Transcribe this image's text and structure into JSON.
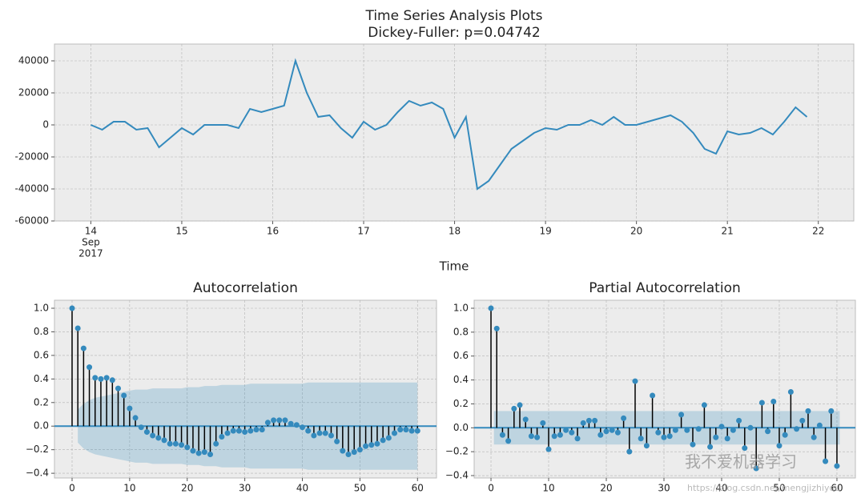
{
  "chart_data": [
    {
      "type": "line",
      "title": "Time Series Analysis Plots",
      "subtitle": "Dickey-Fuller: p=0.04742",
      "x_label": "Time",
      "x": [
        14,
        14.125,
        14.25,
        14.375,
        14.5,
        14.625,
        14.75,
        14.875,
        15,
        15.125,
        15.25,
        15.375,
        15.5,
        15.625,
        15.75,
        15.875,
        16,
        16.125,
        16.25,
        16.375,
        16.5,
        16.625,
        16.75,
        16.875,
        17,
        17.125,
        17.25,
        17.375,
        17.5,
        17.625,
        17.75,
        17.875,
        18,
        18.125,
        18.25,
        18.375,
        18.5,
        18.625,
        18.75,
        18.875,
        19,
        19.125,
        19.25,
        19.375,
        19.5,
        19.625,
        19.75,
        19.875,
        20,
        20.125,
        20.25,
        20.375,
        20.5,
        20.625,
        20.75,
        20.875,
        21,
        21.125,
        21.25,
        21.375,
        21.5,
        21.625,
        21.75,
        21.875
      ],
      "values": [
        0,
        -3000,
        2000,
        2000,
        -3000,
        -2000,
        -14000,
        -8000,
        -2000,
        -6000,
        0,
        0,
        0,
        -2000,
        10000,
        8000,
        10000,
        12000,
        40000,
        20000,
        5000,
        6000,
        -2000,
        -8000,
        2000,
        -3000,
        0,
        8000,
        15000,
        12000,
        14000,
        10000,
        -8000,
        5000,
        -40000,
        -35000,
        -25000,
        -15000,
        -10000,
        -5000,
        -2000,
        -3000,
        0,
        0,
        3000,
        0,
        5000,
        0,
        0,
        2000,
        4000,
        6000,
        2000,
        -5000,
        -15000,
        -18000,
        -4000,
        -6000,
        -5000,
        -2000,
        -6000,
        2000,
        11000,
        5000
      ],
      "color": "#348abd",
      "x_tick_sublabels": [
        "Sep",
        "2017"
      ],
      "xlim": [
        13.6,
        22.39
      ],
      "ylim": [
        -60000,
        50500
      ],
      "xticks": [
        14,
        15,
        16,
        17,
        18,
        19,
        20,
        21,
        22
      ],
      "yticks": [
        -60000,
        -40000,
        -20000,
        0,
        20000,
        40000
      ],
      "grid": true
    },
    {
      "type": "stem",
      "title": "Autocorrelation",
      "x": [
        0,
        1,
        2,
        3,
        4,
        5,
        6,
        7,
        8,
        9,
        10,
        11,
        12,
        13,
        14,
        15,
        16,
        17,
        18,
        19,
        20,
        21,
        22,
        23,
        24,
        25,
        26,
        27,
        28,
        29,
        30,
        31,
        32,
        33,
        34,
        35,
        36,
        37,
        38,
        39,
        40,
        41,
        42,
        43,
        44,
        45,
        46,
        47,
        48,
        49,
        50,
        51,
        52,
        53,
        54,
        55,
        56,
        57,
        58,
        59,
        60
      ],
      "values": [
        1.0,
        0.83,
        0.66,
        0.5,
        0.41,
        0.4,
        0.41,
        0.39,
        0.32,
        0.26,
        0.15,
        0.07,
        -0.01,
        -0.05,
        -0.08,
        -0.1,
        -0.12,
        -0.15,
        -0.15,
        -0.16,
        -0.18,
        -0.21,
        -0.23,
        -0.22,
        -0.24,
        -0.15,
        -0.09,
        -0.06,
        -0.04,
        -0.04,
        -0.05,
        -0.04,
        -0.03,
        -0.03,
        0.03,
        0.05,
        0.05,
        0.05,
        0.02,
        0.01,
        -0.01,
        -0.04,
        -0.08,
        -0.06,
        -0.06,
        -0.08,
        -0.13,
        -0.21,
        -0.24,
        -0.22,
        -0.2,
        -0.17,
        -0.16,
        -0.15,
        -0.12,
        -0.1,
        -0.06,
        -0.03,
        -0.03,
        -0.04,
        -0.04
      ],
      "conf_band": [
        null,
        0.14,
        0.19,
        0.22,
        0.24,
        0.25,
        0.26,
        0.27,
        0.28,
        0.29,
        0.3,
        0.31,
        0.31,
        0.31,
        0.32,
        0.32,
        0.32,
        0.32,
        0.32,
        0.32,
        0.33,
        0.33,
        0.33,
        0.34,
        0.34,
        0.34,
        0.35,
        0.35,
        0.35,
        0.35,
        0.35,
        0.36,
        0.36,
        0.36,
        0.36,
        0.36,
        0.36,
        0.36,
        0.36,
        0.36,
        0.36,
        0.37,
        0.37,
        0.37,
        0.37,
        0.37,
        0.37,
        0.37,
        0.37,
        0.37,
        0.37,
        0.37,
        0.37,
        0.37,
        0.37,
        0.37,
        0.37,
        0.37,
        0.37,
        0.37,
        0.37
      ],
      "color": "#348abd",
      "stem_color": "#000000",
      "xlim": [
        -3.06,
        63.3
      ],
      "ylim": [
        -0.44,
        1.068
      ],
      "xticks": [
        0,
        10,
        20,
        30,
        40,
        50,
        60
      ],
      "yticks": [
        {
          "value": -0.4,
          "label": "−0.4"
        },
        {
          "value": -0.2,
          "label": "−0.2"
        },
        {
          "value": 0,
          "label": "0.0"
        },
        {
          "value": 0.2,
          "label": "0.2"
        },
        {
          "value": 0.4,
          "label": "0.4"
        },
        {
          "value": 0.6,
          "label": "0.6"
        },
        {
          "value": 0.8,
          "label": "0.8"
        },
        {
          "value": 1,
          "label": "1.0"
        }
      ],
      "grid": true
    },
    {
      "type": "stem",
      "title": "Partial Autocorrelation",
      "x": [
        0,
        1,
        2,
        3,
        4,
        5,
        6,
        7,
        8,
        9,
        10,
        11,
        12,
        13,
        14,
        15,
        16,
        17,
        18,
        19,
        20,
        21,
        22,
        23,
        24,
        25,
        26,
        27,
        28,
        29,
        30,
        31,
        32,
        33,
        34,
        35,
        36,
        37,
        38,
        39,
        40,
        41,
        42,
        43,
        44,
        45,
        46,
        47,
        48,
        49,
        50,
        51,
        52,
        53,
        54,
        55,
        56,
        57,
        58,
        59,
        60
      ],
      "values": [
        1.0,
        0.83,
        -0.06,
        -0.11,
        0.16,
        0.19,
        0.07,
        -0.07,
        -0.08,
        0.04,
        -0.18,
        -0.07,
        -0.06,
        -0.02,
        -0.04,
        -0.09,
        0.04,
        0.06,
        0.06,
        -0.06,
        -0.03,
        -0.02,
        -0.04,
        0.08,
        -0.2,
        0.39,
        -0.09,
        -0.15,
        0.27,
        -0.04,
        -0.08,
        -0.07,
        -0.02,
        0.11,
        -0.02,
        -0.14,
        -0.01,
        0.19,
        -0.16,
        -0.08,
        0.01,
        -0.09,
        -0.02,
        0.06,
        -0.17,
        0.0,
        -0.34,
        0.21,
        -0.03,
        0.22,
        -0.15,
        -0.06,
        0.3,
        -0.01,
        0.06,
        0.14,
        -0.08,
        0.02,
        -0.28,
        0.14,
        -0.32
      ],
      "conf_band": 0.14,
      "color": "#348abd",
      "stem_color": "#000000",
      "xlim": [
        -2.92,
        63.2
      ],
      "ylim": [
        -0.42,
        1.067
      ],
      "xticks": [
        0,
        10,
        20,
        30,
        40,
        50,
        60
      ],
      "yticks": [
        {
          "value": -0.4,
          "label": "−0.4"
        },
        {
          "value": -0.2,
          "label": "−0.2"
        },
        {
          "value": 0,
          "label": "0.0"
        },
        {
          "value": 0.2,
          "label": "0.2"
        },
        {
          "value": 0.4,
          "label": "0.4"
        },
        {
          "value": 0.6,
          "label": "0.6"
        },
        {
          "value": 0.8,
          "label": "0.8"
        },
        {
          "value": 1,
          "label": "1.0"
        }
      ],
      "grid": true
    }
  ],
  "watermark": {
    "text": "我不爱机器学习",
    "url": "https://blog.csdn.net/mengjizhiyou"
  }
}
